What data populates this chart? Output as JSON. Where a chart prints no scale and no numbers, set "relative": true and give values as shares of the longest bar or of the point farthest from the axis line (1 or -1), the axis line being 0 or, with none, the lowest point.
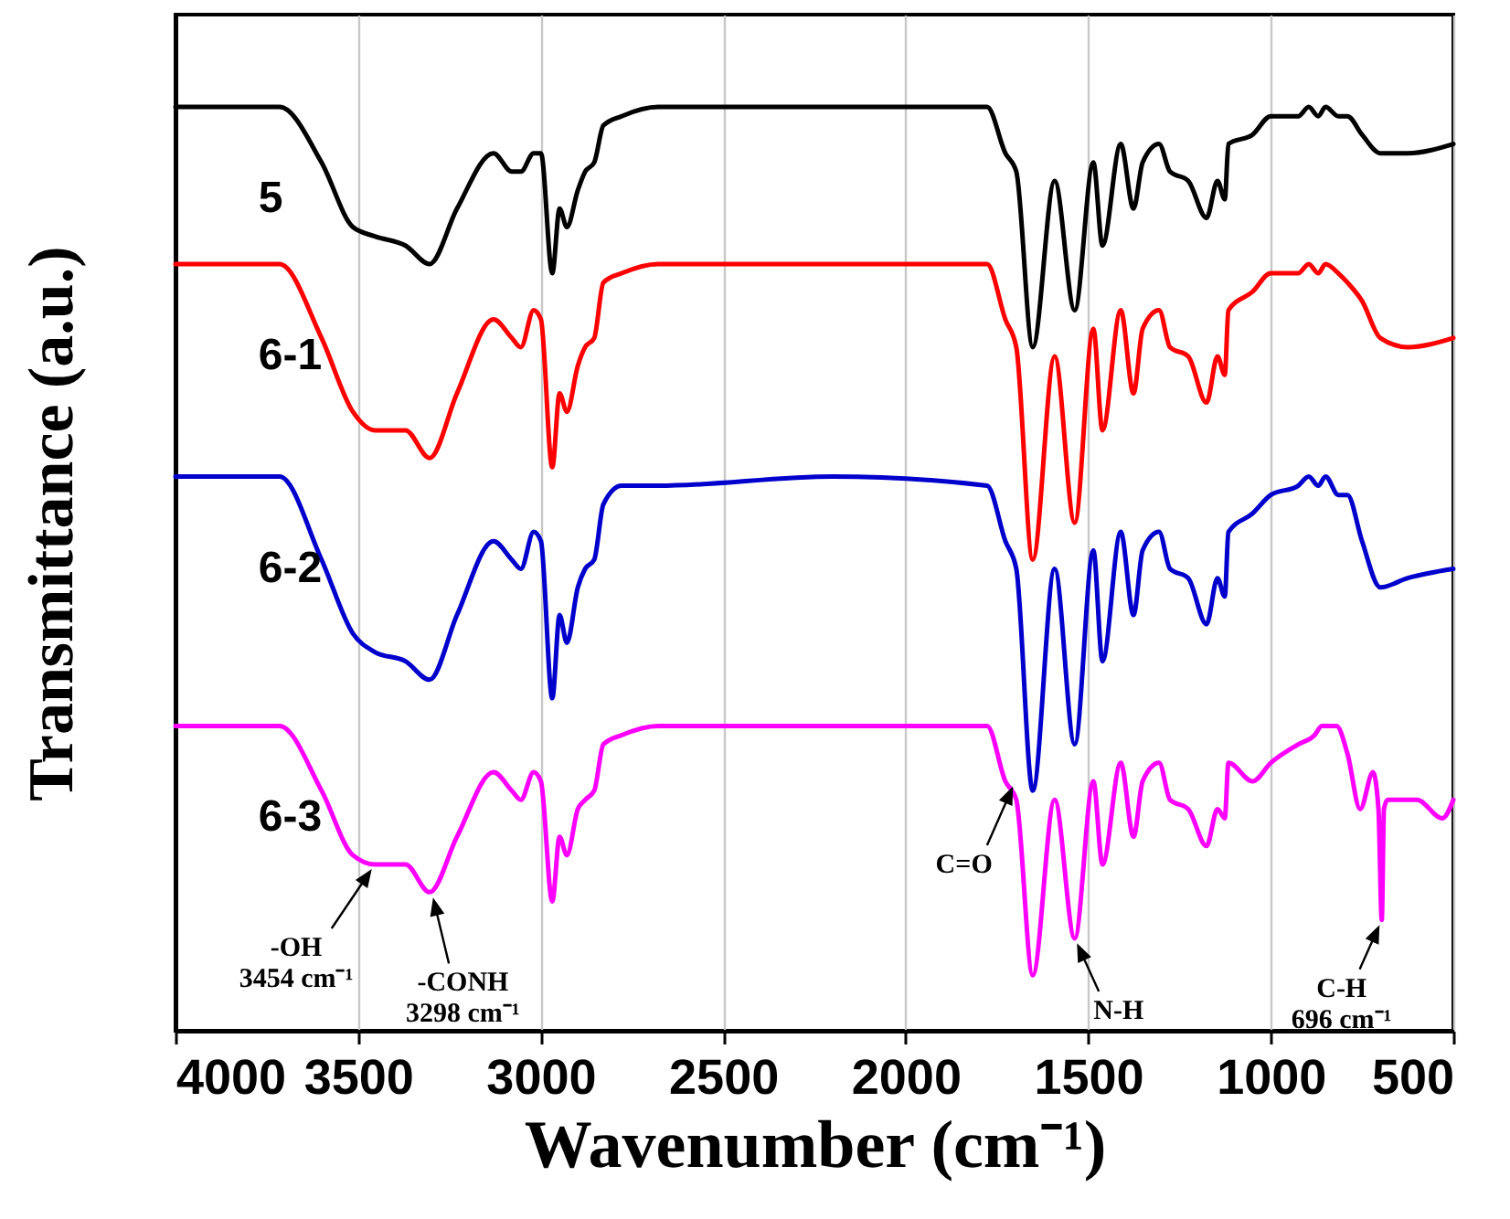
{
  "chart_data": {
    "type": "line",
    "xlabel": "Wavenumber (cm⁻¹)",
    "ylabel": "Transmittance (a.u.)",
    "relative": true,
    "x": [
      4000,
      3715,
      3600,
      3514,
      3454,
      3370,
      3304,
      3229,
      3129,
      3079,
      3054,
      3019,
      2999,
      2968,
      2948,
      2928,
      2898,
      2878,
      2853,
      2828,
      2778,
      2678,
      2200,
      1777,
      1727,
      1697,
      1652,
      1592,
      1537,
      1486,
      1461,
      1411,
      1376,
      1351,
      1306,
      1276,
      1226,
      1176,
      1146,
      1126,
      1116,
      1050,
      1000,
      925,
      896,
      870,
      850,
      815,
      790,
      750,
      700,
      625,
      500
    ],
    "xlim": [
      4000,
      500
    ],
    "xticks": [
      4000,
      3500,
      3000,
      2500,
      2000,
      1500,
      1000,
      500
    ],
    "grid": "x",
    "line_style": "solid",
    "series": [
      {
        "name": "5",
        "color": "#000000",
        "values": [
          1.0,
          1.0,
          0.94,
          0.87,
          0.86,
          0.85,
          0.83,
          0.89,
          0.95,
          0.93,
          0.93,
          0.95,
          0.95,
          0.82,
          0.89,
          0.87,
          0.91,
          0.93,
          0.94,
          0.98,
          0.99,
          1.0,
          1.0,
          1.0,
          0.95,
          0.93,
          0.74,
          0.92,
          0.78,
          0.94,
          0.85,
          0.96,
          0.89,
          0.94,
          0.96,
          0.93,
          0.92,
          0.88,
          0.92,
          0.9,
          0.96,
          0.97,
          0.99,
          0.99,
          1.0,
          0.99,
          1.0,
          0.99,
          0.99,
          0.97,
          0.95,
          0.95,
          0.96
        ]
      },
      {
        "name": "6-1",
        "color": "#ff0000",
        "values": [
          0.83,
          0.83,
          0.75,
          0.67,
          0.65,
          0.65,
          0.62,
          0.69,
          0.77,
          0.75,
          0.74,
          0.78,
          0.77,
          0.61,
          0.69,
          0.67,
          0.72,
          0.74,
          0.75,
          0.81,
          0.82,
          0.83,
          0.83,
          0.83,
          0.77,
          0.74,
          0.51,
          0.73,
          0.55,
          0.76,
          0.65,
          0.78,
          0.69,
          0.76,
          0.78,
          0.74,
          0.73,
          0.68,
          0.73,
          0.71,
          0.78,
          0.8,
          0.82,
          0.82,
          0.83,
          0.82,
          0.83,
          0.82,
          0.81,
          0.79,
          0.75,
          0.74,
          0.75
        ]
      },
      {
        "name": "6-2",
        "color": "#0000cc",
        "values": [
          0.6,
          0.6,
          0.51,
          0.43,
          0.41,
          0.4,
          0.38,
          0.45,
          0.53,
          0.51,
          0.5,
          0.54,
          0.53,
          0.36,
          0.45,
          0.42,
          0.48,
          0.5,
          0.51,
          0.57,
          0.59,
          0.59,
          0.6,
          0.59,
          0.53,
          0.5,
          0.26,
          0.5,
          0.31,
          0.52,
          0.4,
          0.54,
          0.45,
          0.52,
          0.54,
          0.5,
          0.49,
          0.44,
          0.49,
          0.47,
          0.54,
          0.56,
          0.58,
          0.59,
          0.6,
          0.59,
          0.6,
          0.58,
          0.58,
          0.53,
          0.48,
          0.49,
          0.5
        ]
      },
      {
        "name": "6-3",
        "color": "#ff00ff",
        "x": [
          4000,
          3715,
          3600,
          3514,
          3454,
          3370,
          3304,
          3229,
          3129,
          3079,
          3054,
          3019,
          2999,
          2968,
          2948,
          2928,
          2898,
          2878,
          2853,
          2828,
          2778,
          2678,
          2200,
          1777,
          1727,
          1697,
          1652,
          1592,
          1537,
          1486,
          1461,
          1411,
          1376,
          1351,
          1306,
          1276,
          1226,
          1176,
          1146,
          1126,
          1116,
          1050,
          1000,
          925,
          880,
          860,
          820,
          790,
          755,
          720,
          705,
          696,
          690,
          680,
          600,
          530,
          500
        ],
        "values": [
          0.33,
          0.33,
          0.26,
          0.19,
          0.18,
          0.18,
          0.15,
          0.21,
          0.28,
          0.26,
          0.25,
          0.28,
          0.27,
          0.14,
          0.21,
          0.19,
          0.24,
          0.25,
          0.26,
          0.31,
          0.32,
          0.33,
          0.33,
          0.33,
          0.27,
          0.25,
          0.06,
          0.25,
          0.1,
          0.27,
          0.18,
          0.29,
          0.21,
          0.27,
          0.29,
          0.25,
          0.24,
          0.2,
          0.24,
          0.23,
          0.29,
          0.27,
          0.29,
          0.31,
          0.32,
          0.33,
          0.33,
          0.3,
          0.24,
          0.28,
          0.24,
          0.12,
          0.24,
          0.25,
          0.25,
          0.23,
          0.25
        ]
      }
    ],
    "annotations": [
      {
        "text": "-OH\n3454 cm⁻¹",
        "x": 3454,
        "y": 0.18
      },
      {
        "text": "-CONH\n3298 cm⁻¹",
        "x": 3298,
        "y": 0.15
      },
      {
        "text": "C=O",
        "x": 1700,
        "y": 0.27
      },
      {
        "text": "N-H",
        "x": 1537,
        "y": 0.1
      },
      {
        "text": "C-H\n696 cm⁻¹",
        "x": 696,
        "y": 0.12
      }
    ]
  }
}
